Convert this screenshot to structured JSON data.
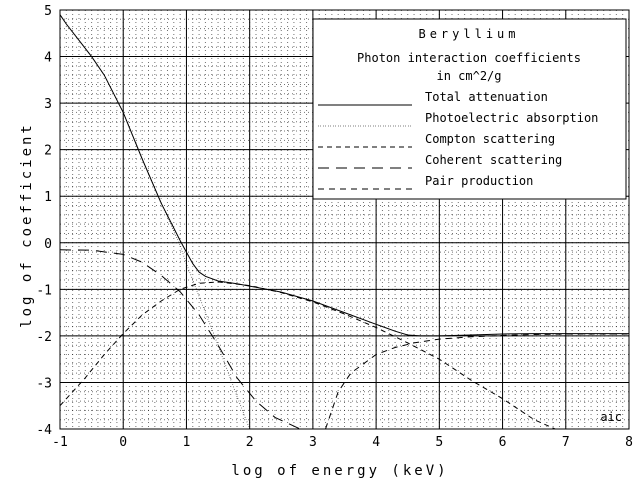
{
  "chart_data": {
    "type": "line",
    "xlabel": "log of energy (keV)",
    "ylabel": "log of coefficient",
    "xlim": [
      -1,
      8
    ],
    "ylim": [
      -4,
      5
    ],
    "x_ticks": [
      "-1",
      "0",
      "1",
      "2",
      "3",
      "4",
      "5",
      "6",
      "7",
      "8"
    ],
    "y_ticks": [
      "5",
      "4",
      "3",
      "2",
      "1",
      "0",
      "-1",
      "-2",
      "-3",
      "-4"
    ],
    "grid": "major and minor",
    "legend_position": "top-right",
    "legend_title": "Beryllium",
    "legend_subtitle": [
      "Photon interaction coefficients",
      "in cm^2/g"
    ],
    "corner_mark": "aic",
    "series": [
      {
        "name": "Total attenuation",
        "dash": "",
        "x": [
          -1.0,
          -0.9,
          -0.7,
          -0.5,
          -0.3,
          0.0,
          0.3,
          0.6,
          0.9,
          1.0,
          1.1,
          1.2,
          1.3,
          1.5,
          1.8,
          2.0,
          2.5,
          3.0,
          3.5,
          4.0,
          4.3,
          4.5,
          4.7,
          5.0,
          5.5,
          6.0,
          6.5,
          7.0,
          7.5,
          8.0
        ],
        "y": [
          4.9,
          4.7,
          4.35,
          4.0,
          3.6,
          2.8,
          1.8,
          0.85,
          0.05,
          -0.2,
          -0.45,
          -0.63,
          -0.72,
          -0.82,
          -0.88,
          -0.93,
          -1.06,
          -1.25,
          -1.5,
          -1.75,
          -1.9,
          -1.98,
          -2.0,
          -2.0,
          -1.98,
          -1.96,
          -1.95,
          -1.95,
          -1.95,
          -1.95
        ]
      },
      {
        "name": "Photoelectric absorption",
        "dash": "0.5 2",
        "x": [
          -1.0,
          -0.9,
          -0.7,
          -0.5,
          -0.3,
          0.0,
          0.3,
          0.6,
          0.9,
          1.0,
          1.2,
          1.5,
          1.8,
          2.0
        ],
        "y": [
          4.9,
          4.7,
          4.35,
          4.0,
          3.6,
          2.8,
          1.8,
          0.85,
          -0.05,
          -0.45,
          -1.15,
          -2.2,
          -3.3,
          -4.0
        ]
      },
      {
        "name": "Compton scattering",
        "dash": "5 4",
        "x": [
          -1.0,
          -0.6,
          -0.3,
          0.0,
          0.3,
          0.6,
          0.9,
          1.2,
          1.5,
          2.0,
          2.5,
          3.0,
          3.5,
          4.0,
          4.5,
          5.0,
          5.5,
          6.0,
          6.5,
          7.0
        ],
        "y": [
          -3.5,
          -2.9,
          -2.4,
          -1.95,
          -1.55,
          -1.25,
          -1.0,
          -0.87,
          -0.84,
          -0.92,
          -1.07,
          -1.27,
          -1.53,
          -1.82,
          -2.15,
          -2.5,
          -2.95,
          -3.35,
          -3.8,
          -4.1
        ]
      },
      {
        "name": "Coherent scattering",
        "dash": "11 7",
        "x": [
          -1.0,
          -0.5,
          0.0,
          0.3,
          0.6,
          0.9,
          1.2,
          1.5,
          1.8,
          2.1,
          2.4,
          2.8
        ],
        "y": [
          -0.15,
          -0.16,
          -0.25,
          -0.42,
          -0.7,
          -1.05,
          -1.55,
          -2.2,
          -2.9,
          -3.4,
          -3.75,
          -4.0
        ]
      },
      {
        "name": "Pair production",
        "dash": "6 5",
        "x": [
          3.2,
          3.4,
          3.6,
          3.8,
          4.0,
          4.3,
          4.6,
          5.0,
          5.5,
          6.0,
          6.5,
          7.0,
          7.5,
          8.0
        ],
        "y": [
          -4.0,
          -3.2,
          -2.8,
          -2.6,
          -2.4,
          -2.25,
          -2.15,
          -2.07,
          -2.02,
          -1.99,
          -1.97,
          -1.96,
          -1.96,
          -1.96
        ]
      }
    ]
  }
}
